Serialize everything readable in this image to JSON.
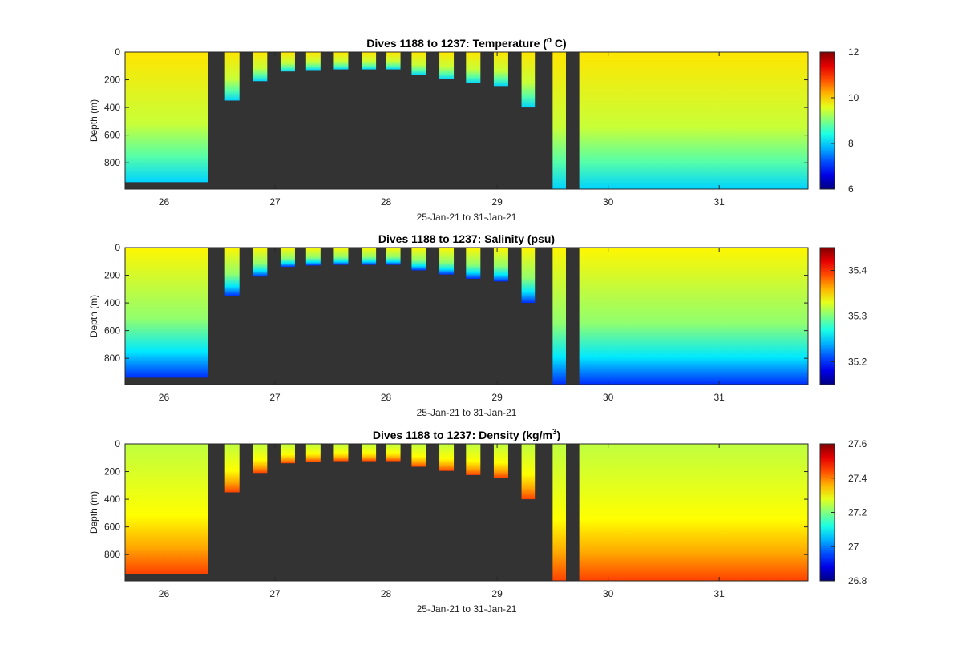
{
  "chart_data": [
    {
      "type": "heatmap",
      "title": "Dives 1188 to 1237: Temperature (",
      "title_super": "o",
      "title_tail": " C)",
      "xlabel": "25-Jan-21 to 31-Jan-21",
      "ylabel": "Depth (m)",
      "xlim": [
        25.65,
        31.8
      ],
      "ylim": [
        0,
        990
      ],
      "xticks": [
        26,
        27,
        28,
        29,
        30,
        31
      ],
      "yticks": [
        0,
        200,
        400,
        600,
        800
      ],
      "colorbar_range": [
        6,
        12
      ],
      "colorbar_ticks": [
        6,
        8,
        10,
        12
      ],
      "surface_value": 9.9,
      "deep_value": 8.0,
      "no_data_color": "#333333"
    },
    {
      "type": "heatmap",
      "title": "Dives 1188 to 1237: Salinity (psu)",
      "title_super": "",
      "title_tail": "",
      "xlabel": "25-Jan-21 to 31-Jan-21",
      "ylabel": "Depth (m)",
      "xlim": [
        25.65,
        31.8
      ],
      "ylim": [
        0,
        990
      ],
      "xticks": [
        26,
        27,
        28,
        29,
        30,
        31
      ],
      "yticks": [
        0,
        200,
        400,
        600,
        800
      ],
      "colorbar_range": [
        35.15,
        35.45
      ],
      "colorbar_ticks": [
        35.2,
        35.3,
        35.4
      ],
      "surface_value": 35.34,
      "deep_value": 35.2,
      "no_data_color": "#333333"
    },
    {
      "type": "heatmap",
      "title": "Dives 1188 to 1237: Density (kg/m",
      "title_super": "3",
      "title_tail": ")",
      "xlabel": "25-Jan-21 to 31-Jan-21",
      "ylabel": "Depth (m)",
      "xlim": [
        25.65,
        31.8
      ],
      "ylim": [
        0,
        990
      ],
      "xticks": [
        26,
        27,
        28,
        29,
        30,
        31
      ],
      "yticks": [
        0,
        200,
        400,
        600,
        800
      ],
      "colorbar_range": [
        26.8,
        27.6
      ],
      "colorbar_ticks": [
        26.8,
        27,
        27.2,
        27.4,
        27.6
      ],
      "surface_value": 27.25,
      "deep_value": 27.45,
      "no_data_color": "#333333"
    }
  ],
  "dive_profiles": [
    {
      "x0": 25.65,
      "x1": 26.4,
      "max_depth": 940
    },
    {
      "x0": 26.55,
      "x1": 26.68,
      "max_depth": 350
    },
    {
      "x0": 26.8,
      "x1": 26.93,
      "max_depth": 210
    },
    {
      "x0": 27.05,
      "x1": 27.18,
      "max_depth": 140
    },
    {
      "x0": 27.28,
      "x1": 27.41,
      "max_depth": 130
    },
    {
      "x0": 27.53,
      "x1": 27.66,
      "max_depth": 125
    },
    {
      "x0": 27.78,
      "x1": 27.91,
      "max_depth": 125
    },
    {
      "x0": 28.0,
      "x1": 28.13,
      "max_depth": 125
    },
    {
      "x0": 28.23,
      "x1": 28.36,
      "max_depth": 165
    },
    {
      "x0": 28.48,
      "x1": 28.61,
      "max_depth": 195
    },
    {
      "x0": 28.72,
      "x1": 28.85,
      "max_depth": 225
    },
    {
      "x0": 28.97,
      "x1": 29.1,
      "max_depth": 245
    },
    {
      "x0": 29.22,
      "x1": 29.34,
      "max_depth": 400
    },
    {
      "x0": 29.5,
      "x1": 29.62,
      "max_depth": 990
    },
    {
      "x0": 29.74,
      "x1": 31.8,
      "max_depth": 990
    }
  ]
}
